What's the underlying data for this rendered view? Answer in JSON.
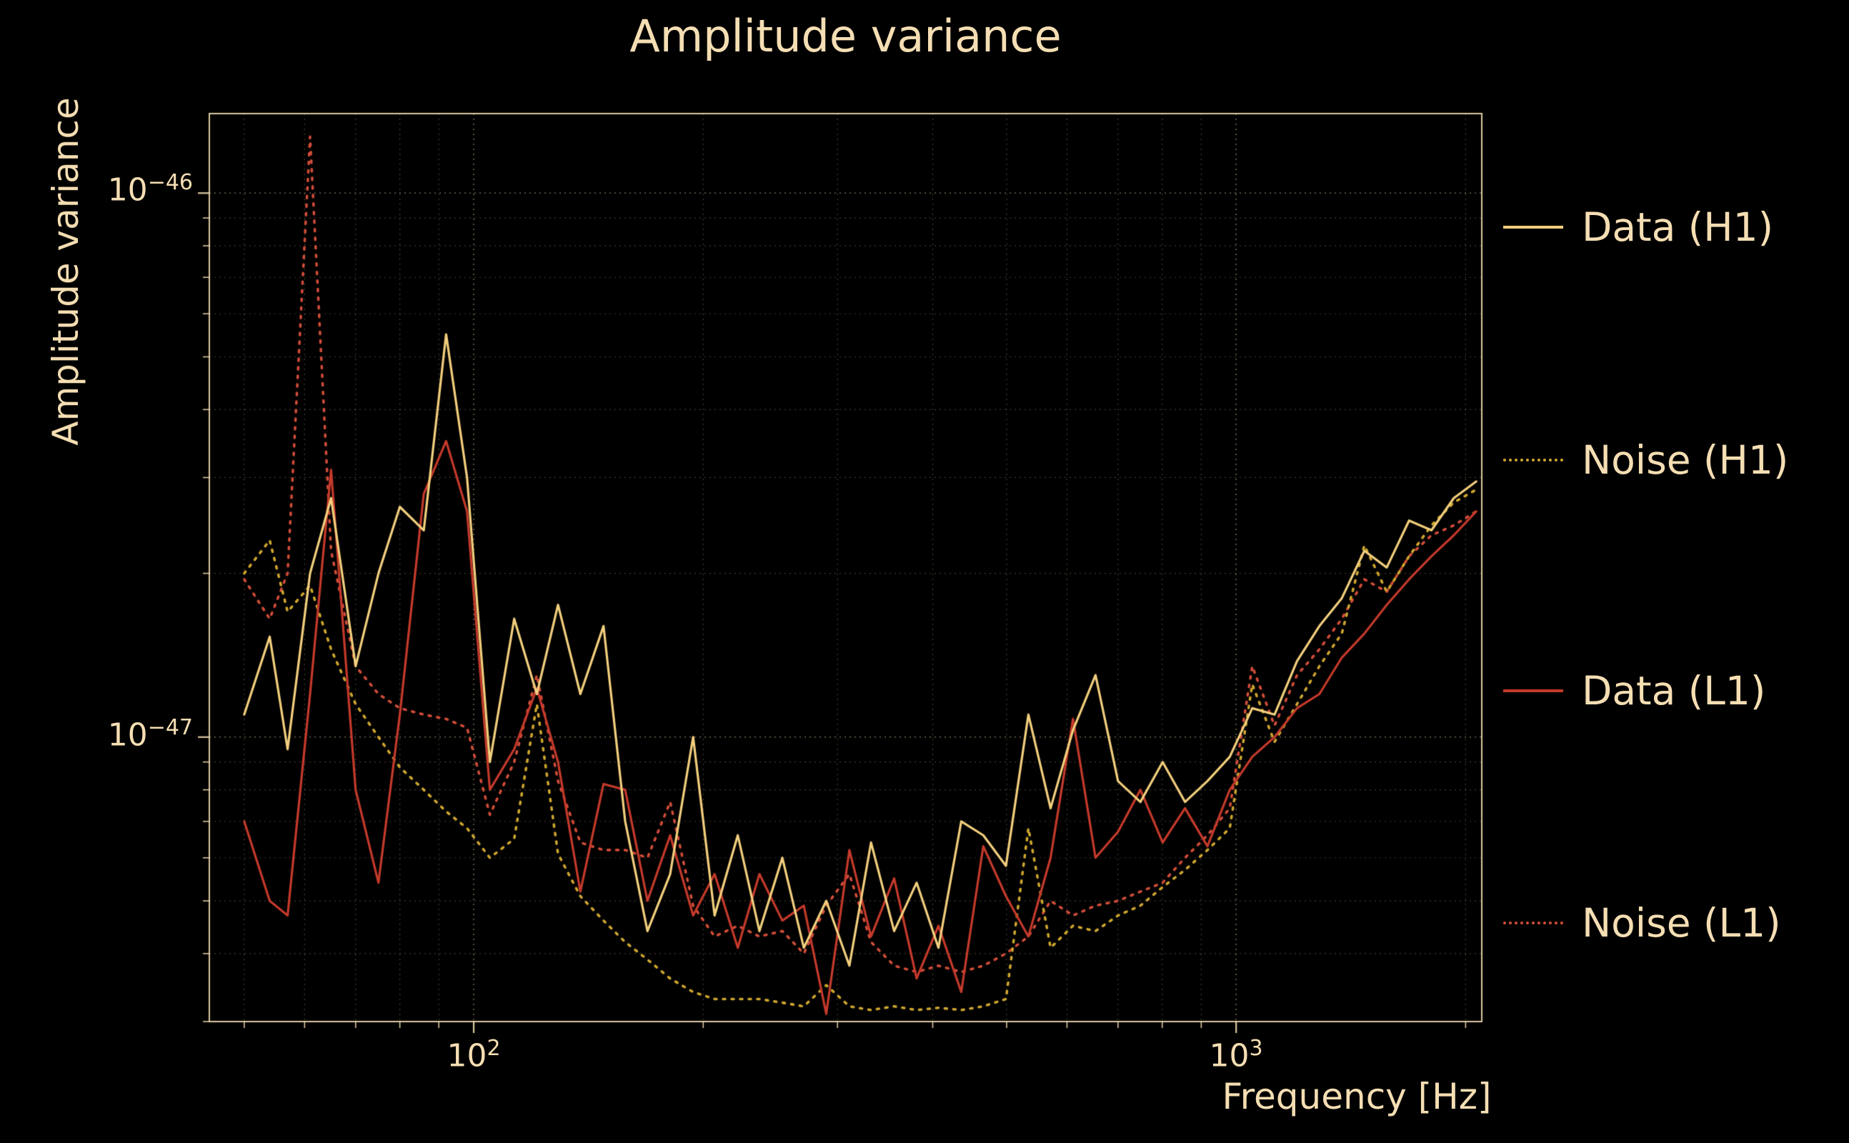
{
  "title": "Amplitude variance",
  "axes": {
    "xlabel": "Frequency [Hz]",
    "ylabel": "Amplitude variance",
    "x_ticks": [
      {
        "base": "10",
        "exp": "2"
      },
      {
        "base": "10",
        "exp": "3"
      }
    ],
    "y_ticks": [
      {
        "base": "10",
        "exp": "−46"
      },
      {
        "base": "10",
        "exp": "−47"
      }
    ]
  },
  "colors": {
    "background": "#000000",
    "text": "#f5deb3",
    "grid": "#f5deb3",
    "spine": "#f5deb3",
    "data_h1": "#f2cf7d",
    "noise_h1": "#cda52f",
    "data_l1": "#c43a2b",
    "noise_l1": "#cf4c38"
  },
  "legend": {
    "items": [
      {
        "label": "Data (H1)",
        "color": "#f2cf7d",
        "dashed": false
      },
      {
        "label": "Noise (H1)",
        "color": "#cda52f",
        "dashed": true
      },
      {
        "label": "Data (L1)",
        "color": "#c43a2b",
        "dashed": false
      },
      {
        "label": "Noise (L1)",
        "color": "#cf4c38",
        "dashed": true
      }
    ]
  },
  "chart_data": {
    "type": "line",
    "title": "Amplitude variance",
    "xlabel": "Frequency [Hz]",
    "ylabel": "Amplitude variance",
    "x_scale": "log",
    "y_scale": "log",
    "xlim": [
      45,
      2100
    ],
    "ylim": [
      3e-48,
      1.4e-46
    ],
    "grid": true,
    "legend_position": "right-outside",
    "values_scale": 1e-48,
    "x": [
      50,
      54,
      57,
      61,
      65,
      70,
      75,
      80,
      86,
      92,
      98,
      105,
      113,
      121,
      129,
      138,
      148,
      158,
      169,
      181,
      194,
      207,
      222,
      237,
      254,
      271,
      290,
      311,
      332,
      356,
      381,
      407,
      436,
      466,
      499,
      534,
      571,
      611,
      654,
      700,
      749,
      801,
      857,
      917,
      981,
      1050,
      1123,
      1202,
      1286,
      1376,
      1473,
      1576,
      1686,
      1804,
      1930,
      2065
    ],
    "series": [
      {
        "name": "Data (H1)",
        "style": "solid",
        "color": "#f2cf7d",
        "values": [
          11,
          15.3,
          9.5,
          20,
          27.5,
          13.5,
          20,
          26.5,
          24,
          55,
          30,
          9,
          16.5,
          12,
          17.5,
          12,
          16,
          7,
          4.4,
          5.6,
          10,
          4.7,
          6.6,
          4.4,
          6,
          4.1,
          5,
          3.8,
          6.4,
          4.4,
          5.4,
          4.1,
          7,
          6.6,
          5.8,
          11,
          7.4,
          10.3,
          13,
          8.3,
          7.6,
          9,
          7.6,
          8.3,
          9.2,
          11.3,
          11,
          13.8,
          16,
          18,
          22,
          20.5,
          25,
          24,
          27.5,
          29.5
        ]
      },
      {
        "name": "Noise (H1)",
        "style": "dotted",
        "color": "#cda52f",
        "values": [
          20,
          23,
          17,
          19,
          14.5,
          11.5,
          10,
          8.8,
          8,
          7.3,
          6.8,
          6,
          6.5,
          11.5,
          6.1,
          5.1,
          4.6,
          4.2,
          3.9,
          3.6,
          3.4,
          3.3,
          3.3,
          3.3,
          3.25,
          3.2,
          3.5,
          3.2,
          3.15,
          3.2,
          3.15,
          3.18,
          3.15,
          3.2,
          3.3,
          6.8,
          4.1,
          4.5,
          4.4,
          4.7,
          4.9,
          5.3,
          5.7,
          6.2,
          6.8,
          12.5,
          9.8,
          11.5,
          13.5,
          15.5,
          22.5,
          18.5,
          21.5,
          24.5,
          27,
          28.5
        ]
      },
      {
        "name": "Data (L1)",
        "style": "solid",
        "color": "#c43a2b",
        "values": [
          7,
          5,
          4.7,
          12,
          31,
          8,
          5.4,
          11,
          28,
          35,
          26,
          8,
          9.5,
          12.3,
          9,
          5.2,
          8.2,
          8,
          5,
          6.6,
          4.7,
          5.6,
          4.1,
          5.6,
          4.6,
          4.9,
          3.1,
          6.2,
          4.3,
          5.5,
          3.6,
          4.5,
          3.4,
          6.3,
          5.1,
          4.3,
          6,
          10.8,
          6,
          6.7,
          8,
          6.4,
          7.4,
          6.3,
          8,
          9.2,
          10,
          11.3,
          12,
          14,
          15.5,
          17.5,
          19.5,
          21.5,
          23.5,
          26
        ]
      },
      {
        "name": "Noise (L1)",
        "style": "dotted",
        "color": "#cf4c38",
        "values": [
          19.5,
          16.5,
          20,
          127,
          22,
          13.5,
          12,
          11.3,
          11,
          10.8,
          10.4,
          7.2,
          9,
          13,
          8.3,
          6.4,
          6.2,
          6.2,
          6,
          7.6,
          4.9,
          4.3,
          4.5,
          4.3,
          4.4,
          4,
          4.9,
          5.6,
          4.2,
          3.8,
          3.7,
          3.8,
          3.7,
          3.8,
          4,
          4.3,
          5,
          4.7,
          4.9,
          5,
          5.2,
          5.4,
          6,
          6.6,
          7.4,
          13.5,
          10.5,
          13,
          14.5,
          16.5,
          19.5,
          18.5,
          21.5,
          23.5,
          24.5,
          26
        ]
      }
    ]
  }
}
